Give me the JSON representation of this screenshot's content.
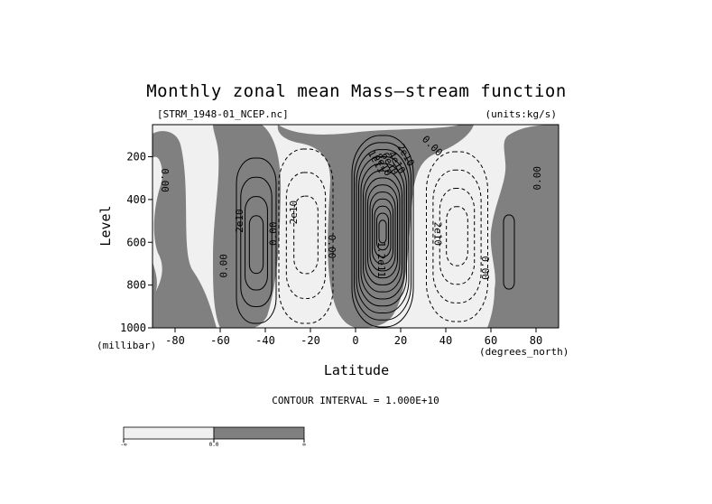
{
  "chart_data": {
    "type": "contour",
    "title": "Monthly zonal mean Mass—stream function",
    "file_label": "[STRM_1948-01_NCEP.nc]",
    "units_label": "(units:kg/s)",
    "xlabel": "Latitude",
    "ylabel": "Level",
    "x_units_label": "(degrees_north)",
    "y_units_label": "(millibar)",
    "xlim": [
      -90,
      90
    ],
    "ylim": [
      1000,
      50
    ],
    "y_reversed": true,
    "x_ticks": [
      -80,
      -60,
      -40,
      -20,
      0,
      20,
      40,
      60,
      80
    ],
    "x_tick_labels": [
      "-80",
      "-60",
      "-40",
      "-20",
      "0",
      "20",
      "40",
      "60",
      "80"
    ],
    "y_ticks": [
      200,
      400,
      600,
      800,
      1000
    ],
    "y_tick_labels": [
      "200",
      "400",
      "600",
      "800",
      "1000"
    ],
    "contour_interval_text": "CONTOUR INTERVAL = 1.000E+10",
    "contour_interval": 10000000000.0,
    "shading": {
      "negative_color": "#f0f0f0",
      "positive_color": "#808080",
      "colorbar_labels": [
        "-∞",
        "0.0",
        "∞"
      ]
    },
    "cells": [
      {
        "name": "southern-polar-cell",
        "sign": "positive",
        "center_lat": -44,
        "center_level": 620,
        "peak": 40000000000.0
      },
      {
        "name": "southern-ferrel-cell",
        "sign": "negative",
        "center_lat": -22,
        "center_level": 560,
        "peak": -30000000000.0
      },
      {
        "name": "northern-hadley-cell",
        "sign": "positive",
        "center_lat": 12,
        "center_level": 550,
        "peak": 130000000000.0
      },
      {
        "name": "northern-ferrel-cell",
        "sign": "negative",
        "center_lat": 45,
        "center_level": 570,
        "peak": -40000000000.0
      },
      {
        "name": "northern-polar-cell",
        "sign": "positive",
        "center_lat": 68,
        "center_level": 640,
        "peak": 10000000000.0
      }
    ],
    "contour_labels": [
      {
        "text": "0.00",
        "lat": -86,
        "level": 310,
        "rotate": 90
      },
      {
        "text": "0.00",
        "lat": -57,
        "level": 710,
        "rotate": -90
      },
      {
        "text": "2e10",
        "lat": -50,
        "level": 500,
        "rotate": -90
      },
      {
        "text": "0.00",
        "lat": -35,
        "level": 560,
        "rotate": -90
      },
      {
        "text": "2e10",
        "lat": -26,
        "level": 460,
        "rotate": -90
      },
      {
        "text": "0.00",
        "lat": -12,
        "level": 620,
        "rotate": 90
      },
      {
        "text": "1e11",
        "lat": 8,
        "level": 230,
        "rotate": 60
      },
      {
        "text": "8e10",
        "lat": 11,
        "level": 245,
        "rotate": 60
      },
      {
        "text": "6e10",
        "lat": 14,
        "level": 240,
        "rotate": 60
      },
      {
        "text": "4e10",
        "lat": 17,
        "level": 235,
        "rotate": 60
      },
      {
        "text": "2e10",
        "lat": 21,
        "level": 200,
        "rotate": 60
      },
      {
        "text": "1.2e11",
        "lat": 10,
        "level": 680,
        "rotate": 90
      },
      {
        "text": "0.00",
        "lat": 33,
        "level": 160,
        "rotate": 45
      },
      {
        "text": "2e10",
        "lat": 35,
        "level": 560,
        "rotate": 90
      },
      {
        "text": "0.00",
        "lat": 56,
        "level": 720,
        "rotate": 90
      },
      {
        "text": "0.00",
        "lat": 82,
        "level": 300,
        "rotate": -90
      }
    ]
  }
}
